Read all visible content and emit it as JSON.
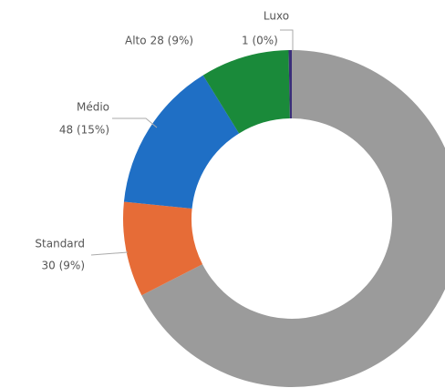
{
  "chart_data": {
    "type": "donut",
    "categories": [
      null,
      "Standard",
      "Médio",
      "Alto",
      "Luxo"
    ],
    "values": [
      222,
      30,
      48,
      28,
      1
    ],
    "value_labels": [
      null,
      "30 (9%)",
      "48 (15%)",
      "28 (9%)",
      "1 (0%)"
    ],
    "colors": [
      "#9b9b9b",
      "#e66c37",
      "#1f6fc5",
      "#1a8a3a",
      "#3b2e7a"
    ]
  }
}
